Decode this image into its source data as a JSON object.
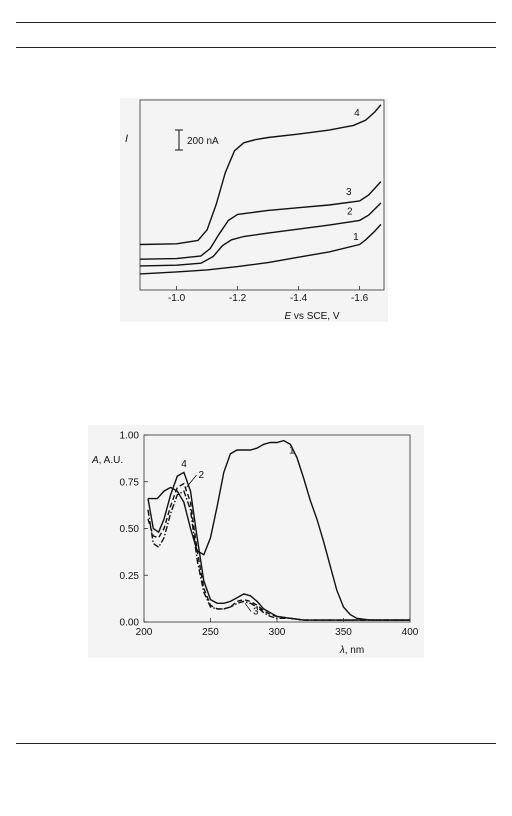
{
  "chart_data": [
    {
      "type": "line",
      "xlabel_italic": "E",
      "xlabel_rest": " vs SCE, V",
      "ylabel": "I",
      "scale_bar_label": "200 nA",
      "x_ticks": [
        "-1.0",
        "-1.2",
        "-1.4",
        "-1.6"
      ],
      "x_tick_values": [
        -1.0,
        -1.2,
        -1.4,
        -1.6
      ],
      "xlim": [
        -0.88,
        -1.68
      ],
      "x_reversed": true,
      "ylim_nA": [
        -120,
        1300
      ],
      "scale_bar_nA": 200,
      "series": [
        {
          "name": "1",
          "x": [
            -0.88,
            -1.0,
            -1.1,
            -1.2,
            -1.3,
            -1.4,
            -1.5,
            -1.6,
            -1.62,
            -1.65,
            -1.67
          ],
          "y_nA": [
            0,
            15,
            30,
            55,
            85,
            125,
            165,
            220,
            255,
            320,
            370
          ]
        },
        {
          "name": "2",
          "x": [
            -0.88,
            -1.0,
            -1.08,
            -1.12,
            -1.15,
            -1.18,
            -1.22,
            -1.3,
            -1.4,
            -1.5,
            -1.6,
            -1.63,
            -1.67
          ],
          "y_nA": [
            60,
            65,
            80,
            130,
            210,
            255,
            280,
            305,
            335,
            365,
            400,
            440,
            530
          ]
        },
        {
          "name": "3",
          "x": [
            -0.88,
            -1.0,
            -1.08,
            -1.11,
            -1.14,
            -1.17,
            -1.2,
            -1.25,
            -1.3,
            -1.4,
            -1.5,
            -1.6,
            -1.63,
            -1.67
          ],
          "y_nA": [
            110,
            115,
            135,
            190,
            300,
            400,
            445,
            460,
            475,
            495,
            515,
            545,
            590,
            690
          ]
        },
        {
          "name": "4",
          "x": [
            -0.88,
            -1.0,
            -1.07,
            -1.1,
            -1.13,
            -1.16,
            -1.19,
            -1.22,
            -1.26,
            -1.3,
            -1.4,
            -1.5,
            -1.58,
            -1.62,
            -1.65,
            -1.67
          ],
          "y_nA": [
            220,
            225,
            250,
            330,
            520,
            760,
            920,
            980,
            1005,
            1020,
            1045,
            1075,
            1110,
            1150,
            1210,
            1265
          ]
        }
      ]
    },
    {
      "type": "line",
      "xlabel_italic": "λ",
      "xlabel_rest": ", nm",
      "ylabel_italic": "A",
      "ylabel_rest": ", A.U.",
      "x_ticks": [
        "200",
        "250",
        "300",
        "350",
        "400"
      ],
      "x_tick_values": [
        200,
        250,
        300,
        350,
        400
      ],
      "y_ticks": [
        "0.00",
        "0.25",
        "0.50",
        "0.75",
        "1.00"
      ],
      "y_tick_values": [
        0,
        0.25,
        0.5,
        0.75,
        1.0
      ],
      "xlim": [
        200,
        400
      ],
      "ylim": [
        0,
        1.0
      ],
      "series": [
        {
          "name": "1",
          "style": "solid",
          "x": [
            203,
            210,
            215,
            220,
            225,
            230,
            235,
            240,
            245,
            250,
            255,
            260,
            265,
            270,
            275,
            280,
            285,
            290,
            295,
            300,
            305,
            310,
            315,
            320,
            325,
            330,
            335,
            340,
            345,
            350,
            355,
            360,
            370,
            380,
            390,
            400
          ],
          "y": [
            0.66,
            0.66,
            0.7,
            0.72,
            0.7,
            0.64,
            0.5,
            0.38,
            0.36,
            0.45,
            0.62,
            0.8,
            0.9,
            0.92,
            0.92,
            0.92,
            0.93,
            0.95,
            0.96,
            0.96,
            0.97,
            0.95,
            0.88,
            0.77,
            0.65,
            0.55,
            0.43,
            0.3,
            0.17,
            0.08,
            0.04,
            0.02,
            0.01,
            0.01,
            0.01,
            0.01
          ]
        },
        {
          "name": "2",
          "style": "dash",
          "x": [
            203,
            207,
            211,
            215,
            220,
            225,
            230,
            235,
            240,
            245,
            250,
            255,
            260,
            265,
            270,
            275,
            280,
            285,
            290,
            295,
            300,
            310,
            320,
            340,
            360,
            380,
            400
          ],
          "y": [
            0.55,
            0.46,
            0.45,
            0.5,
            0.62,
            0.72,
            0.74,
            0.64,
            0.38,
            0.18,
            0.09,
            0.07,
            0.07,
            0.08,
            0.11,
            0.12,
            0.11,
            0.09,
            0.06,
            0.04,
            0.03,
            0.02,
            0.01,
            0.01,
            0.01,
            0.01,
            0.01
          ]
        },
        {
          "name": "3",
          "style": "dashdot",
          "x": [
            203,
            207,
            211,
            215,
            220,
            225,
            230,
            235,
            240,
            245,
            250,
            255,
            260,
            265,
            270,
            275,
            280,
            285,
            290,
            295,
            300,
            310,
            320,
            340,
            360,
            380,
            400
          ],
          "y": [
            0.6,
            0.42,
            0.4,
            0.45,
            0.58,
            0.68,
            0.7,
            0.6,
            0.33,
            0.16,
            0.08,
            0.07,
            0.07,
            0.08,
            0.1,
            0.11,
            0.1,
            0.08,
            0.05,
            0.03,
            0.02,
            0.02,
            0.01,
            0.01,
            0.01,
            0.01,
            0.01
          ]
        },
        {
          "name": "4",
          "style": "solid",
          "x": [
            203,
            207,
            211,
            215,
            220,
            225,
            230,
            235,
            240,
            245,
            250,
            255,
            260,
            265,
            270,
            275,
            280,
            285,
            290,
            295,
            300,
            310,
            320,
            340,
            360,
            380,
            400
          ],
          "y": [
            0.66,
            0.5,
            0.48,
            0.55,
            0.68,
            0.78,
            0.8,
            0.7,
            0.45,
            0.22,
            0.12,
            0.1,
            0.1,
            0.11,
            0.13,
            0.15,
            0.14,
            0.11,
            0.07,
            0.05,
            0.03,
            0.02,
            0.01,
            0.01,
            0.01,
            0.01,
            0.01
          ]
        }
      ]
    }
  ]
}
